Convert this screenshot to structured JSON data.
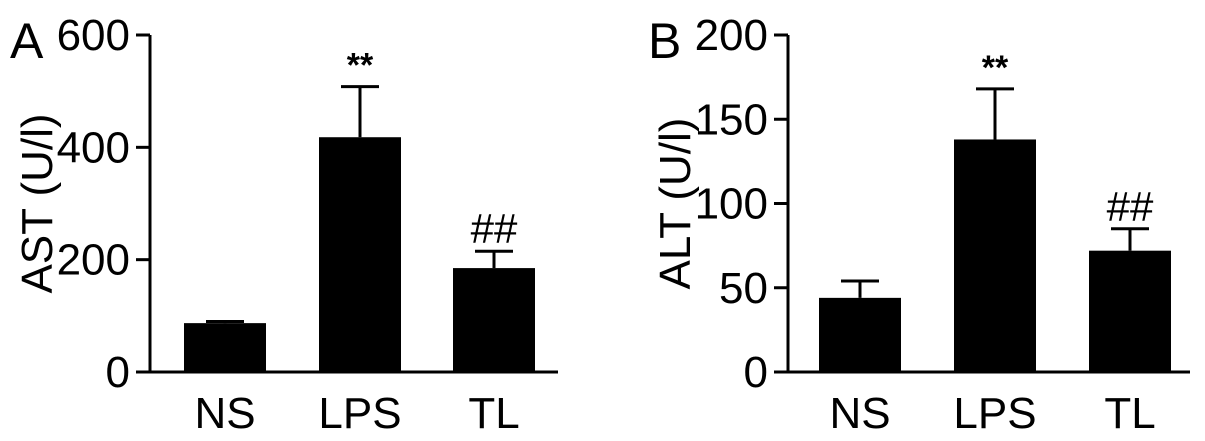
{
  "chart_data": [
    {
      "panel": "A",
      "type": "bar",
      "categories": [
        "NS",
        "LPS",
        "TL"
      ],
      "values": [
        87,
        418,
        185
      ],
      "errors": [
        3,
        90,
        30
      ],
      "annotations": [
        "",
        "**",
        "##"
      ],
      "ylabel": "AST (U/l)",
      "ylim": [
        0,
        600
      ],
      "yticks": [
        0,
        200,
        400,
        600
      ],
      "grid": false,
      "legend": "none"
    },
    {
      "panel": "B",
      "type": "bar",
      "categories": [
        "NS",
        "LPS",
        "TL"
      ],
      "values": [
        44,
        138,
        72
      ],
      "errors": [
        10,
        30,
        13
      ],
      "annotations": [
        "",
        "**",
        "##"
      ],
      "ylabel": "ALT (U/l)",
      "ylim": [
        0,
        200
      ],
      "yticks": [
        0,
        50,
        100,
        150,
        200
      ],
      "grid": false,
      "legend": "none"
    }
  ]
}
